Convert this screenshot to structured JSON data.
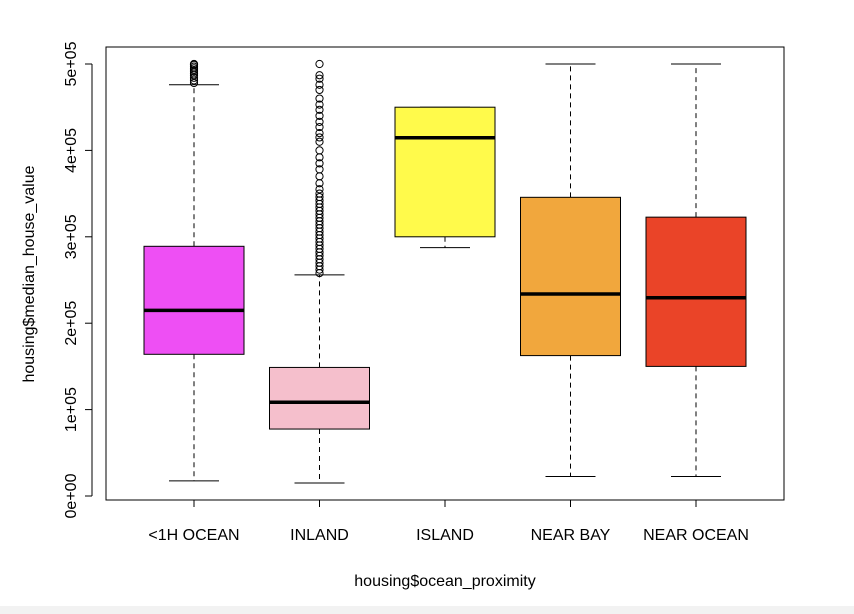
{
  "chart_data": {
    "type": "boxplot",
    "xlabel": "housing$ocean_proximity",
    "ylabel": "housing$median_house_value",
    "ylim": [
      0,
      500000
    ],
    "yticks": [
      {
        "value": 0,
        "label": "0e+00"
      },
      {
        "value": 100000,
        "label": "1e+05"
      },
      {
        "value": 200000,
        "label": "2e+05"
      },
      {
        "value": 300000,
        "label": "3e+05"
      },
      {
        "value": 400000,
        "label": "4e+05"
      },
      {
        "value": 500000,
        "label": "5e+05"
      }
    ],
    "categories": [
      "<1H OCEAN",
      "INLAND",
      "ISLAND",
      "NEAR BAY",
      "NEAR OCEAN"
    ],
    "boxes": [
      {
        "category": "<1H OCEAN",
        "color": "#ee4ff4",
        "whisker_low": 17500,
        "q1": 164000,
        "median": 214800,
        "q3": 289000,
        "whisker_high": 476000,
        "outliers": [
          478000,
          481000,
          484000,
          487000,
          489000,
          491000,
          493000,
          495000,
          497000,
          499000,
          500000
        ]
      },
      {
        "category": "INLAND",
        "color": "#f5bfcc",
        "whisker_low": 14999,
        "q1": 77500,
        "median": 108500,
        "q3": 148800,
        "whisker_high": 256000,
        "outliers": [
          258000,
          262000,
          266000,
          270000,
          274000,
          278000,
          282000,
          286000,
          290000,
          294000,
          298000,
          302000,
          306000,
          310000,
          314000,
          318000,
          322000,
          326000,
          330000,
          334000,
          338000,
          342000,
          346000,
          350000,
          355000,
          362000,
          370000,
          378000,
          385000,
          392000,
          400000,
          410000,
          415000,
          420000,
          427000,
          433000,
          440000,
          447000,
          453000,
          460000,
          470000,
          476000,
          483000,
          487000,
          500000
        ]
      },
      {
        "category": "ISLAND",
        "color": "#fffa4b",
        "whisker_low": 287500,
        "q1": 300000,
        "median": 414700,
        "q3": 450000,
        "whisker_high": 450000,
        "outliers": []
      },
      {
        "category": "NEAR BAY",
        "color": "#f1a73d",
        "whisker_low": 22500,
        "q1": 162500,
        "median": 233800,
        "q3": 345700,
        "whisker_high": 500000,
        "outliers": []
      },
      {
        "category": "NEAR OCEAN",
        "color": "#ea4428",
        "whisker_low": 22500,
        "q1": 150000,
        "median": 229450,
        "q3": 322750,
        "whisker_high": 500000,
        "outliers": []
      }
    ]
  }
}
